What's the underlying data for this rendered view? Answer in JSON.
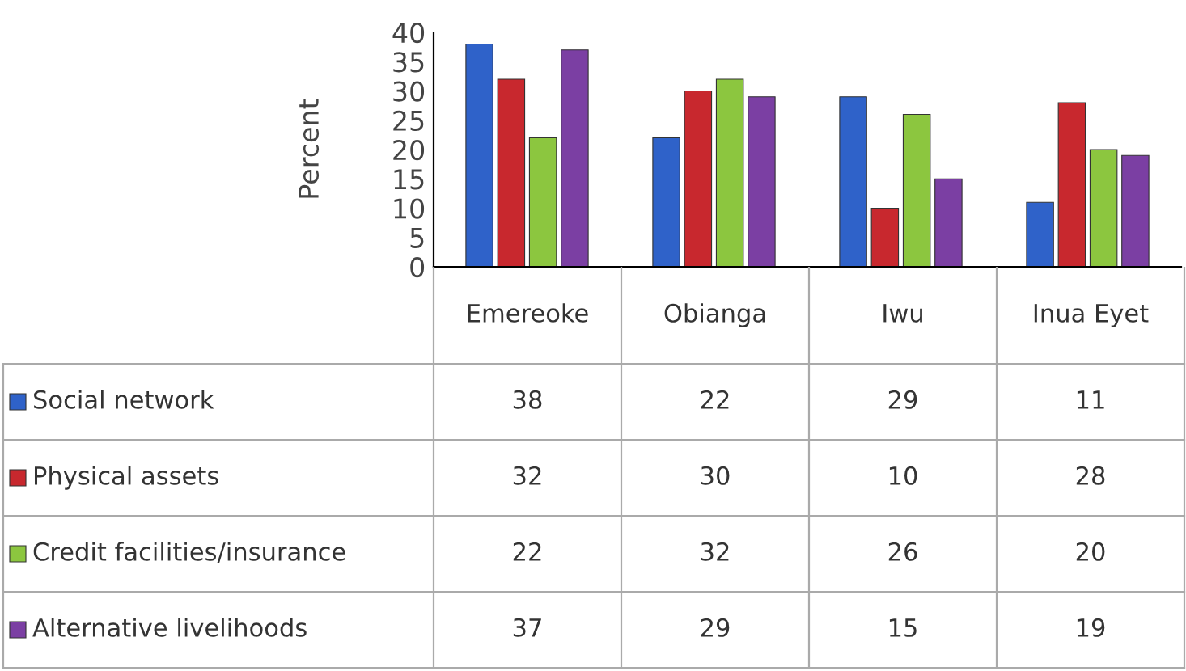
{
  "chart_data": {
    "type": "bar",
    "ylabel": "Percent",
    "categories": [
      "Emereoke",
      "Obianga",
      "Iwu",
      "Inua Eyet"
    ],
    "series": [
      {
        "name": "Social network",
        "color": "#2f62c9",
        "values": [
          38,
          22,
          29,
          11
        ]
      },
      {
        "name": "Physical assets",
        "color": "#c8282e",
        "values": [
          32,
          30,
          10,
          28
        ]
      },
      {
        "name": "Credit facilities/insurance",
        "color": "#8cc63f",
        "values": [
          22,
          32,
          26,
          20
        ]
      },
      {
        "name": "Alternative livelihoods",
        "color": "#7b3fa3",
        "values": [
          37,
          29,
          15,
          19
        ]
      }
    ],
    "ylim": [
      0,
      40
    ],
    "yticks": [
      0,
      5,
      10,
      15,
      20,
      25,
      30,
      35,
      40
    ],
    "grid": false,
    "legend": "bottom",
    "data_labels": true
  }
}
